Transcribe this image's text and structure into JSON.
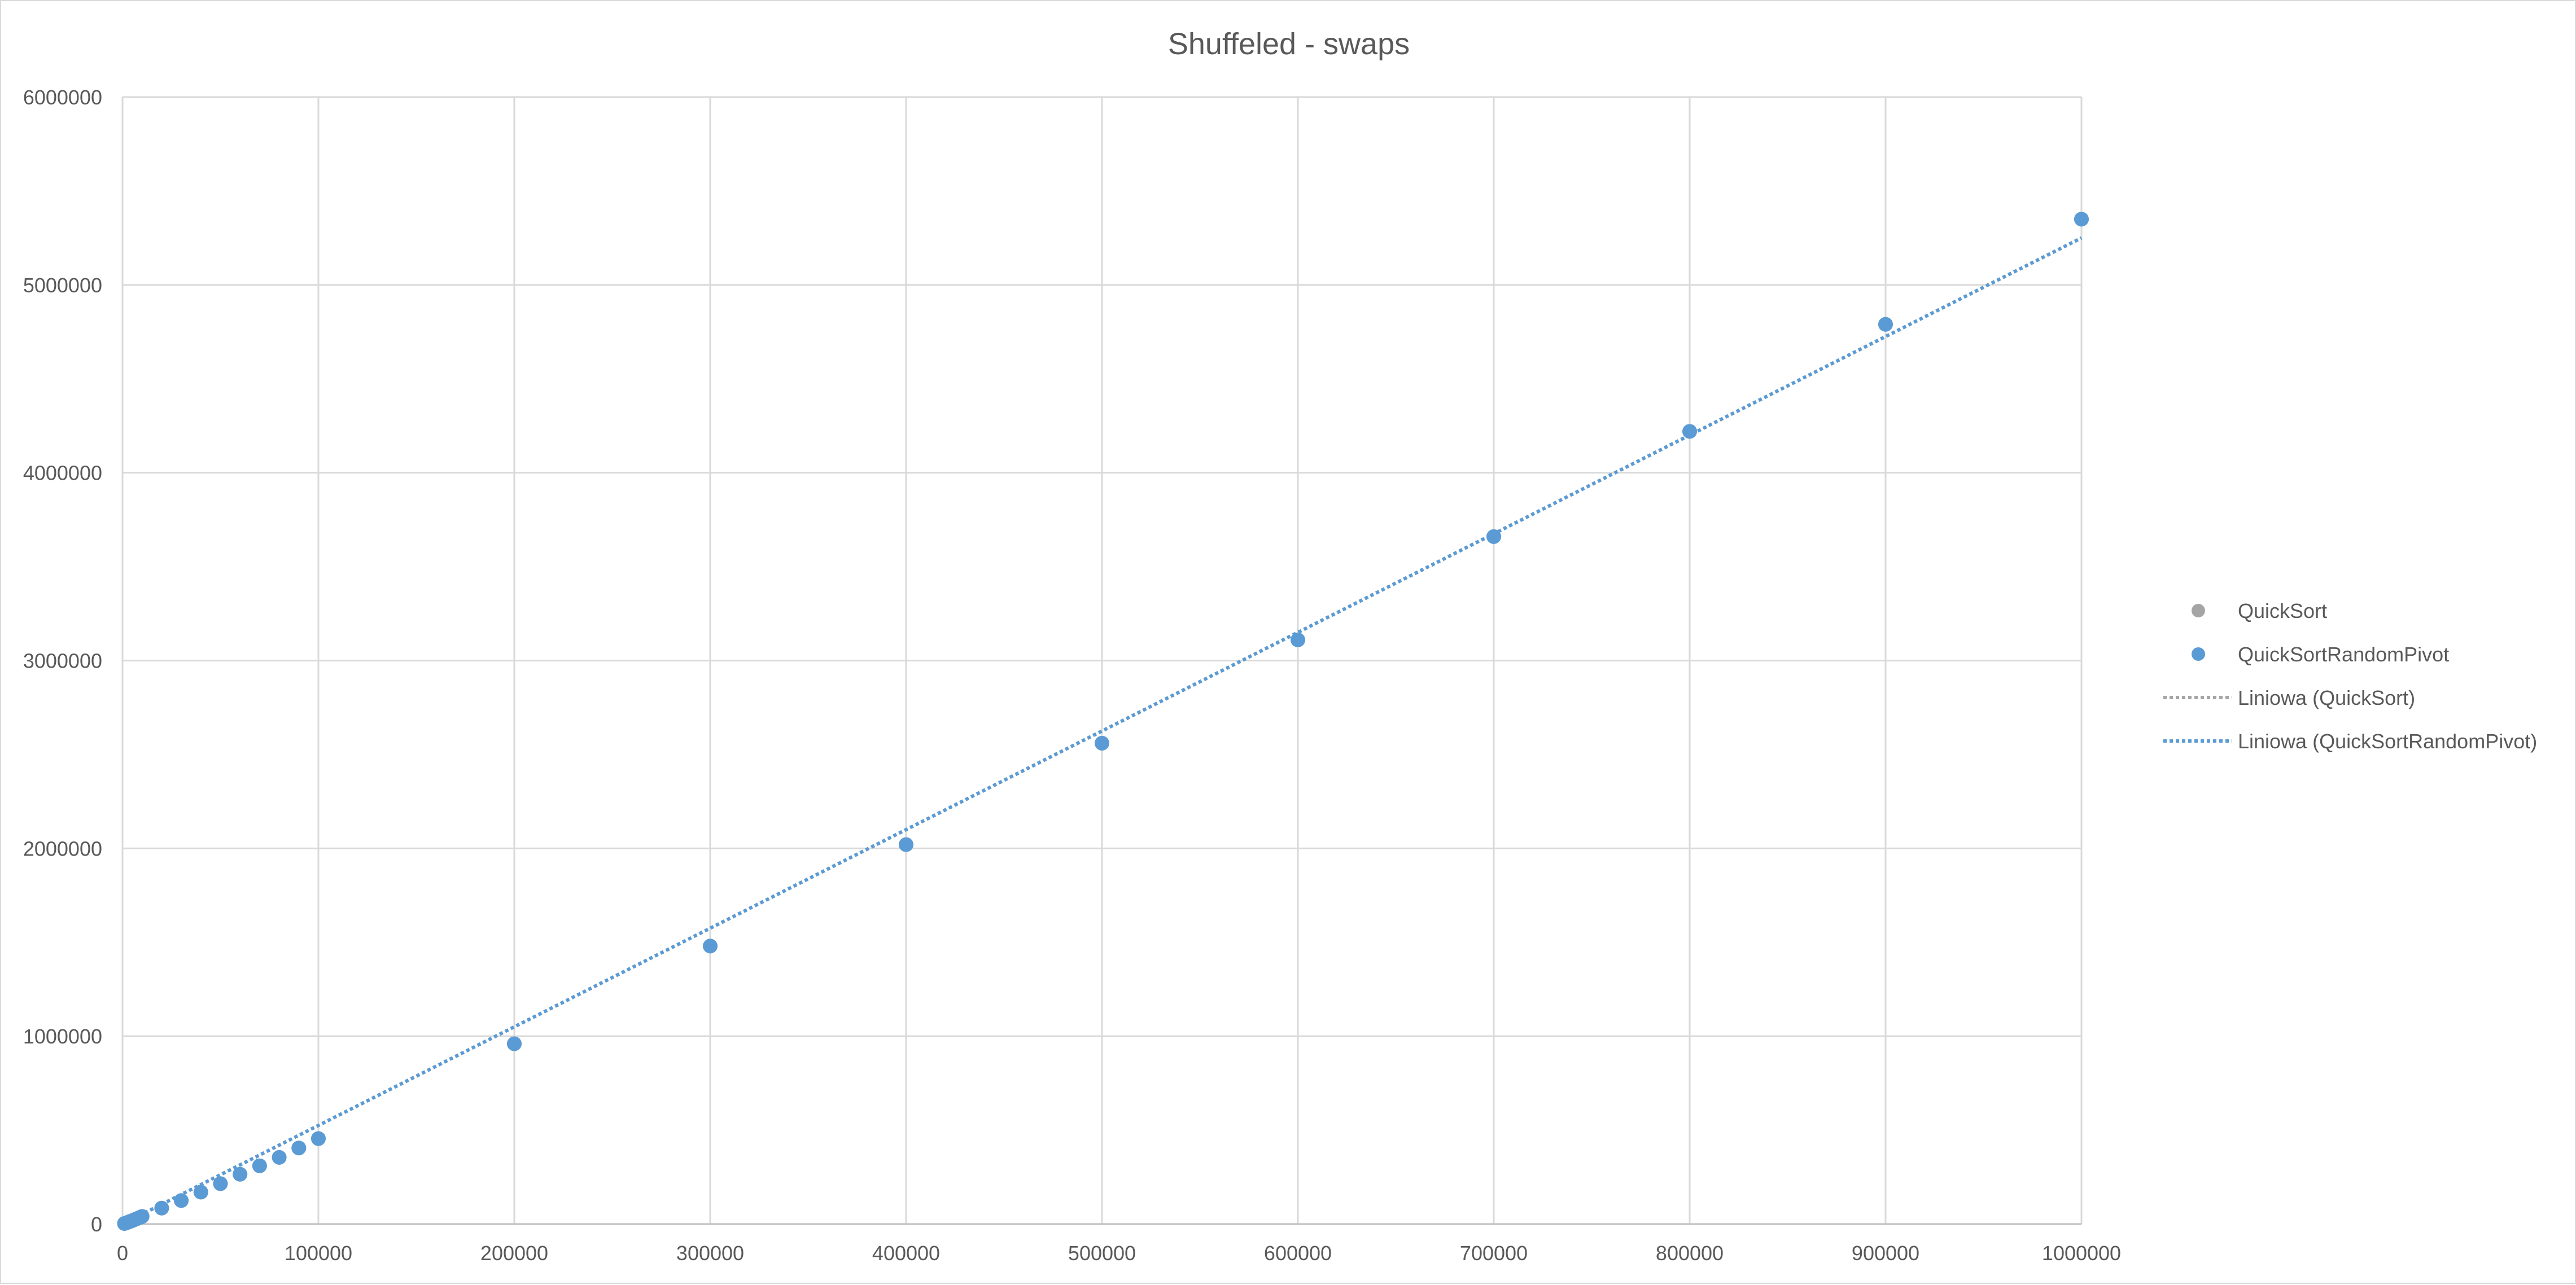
{
  "chart_data": {
    "type": "scatter",
    "title": "Shuffeled - swaps",
    "xlabel": "",
    "ylabel": "",
    "xlim": [
      0,
      1000000
    ],
    "ylim": [
      0,
      6000000
    ],
    "x_ticks": [
      "0",
      "100000",
      "200000",
      "300000",
      "400000",
      "500000",
      "600000",
      "700000",
      "800000",
      "900000",
      "1000000"
    ],
    "y_ticks": [
      "0",
      "1000000",
      "2000000",
      "3000000",
      "4000000",
      "5000000",
      "6000000"
    ],
    "grid": true,
    "legend_position": "right",
    "series": [
      {
        "name": "QuickSort",
        "color": "#a5a5a5",
        "x": [
          1000,
          2000,
          3000,
          4000,
          5000,
          6000,
          7000,
          8000,
          9000,
          10000,
          20000,
          30000,
          40000,
          50000,
          60000,
          70000,
          80000,
          90000,
          100000,
          200000,
          300000,
          400000,
          500000,
          600000,
          700000,
          800000,
          900000,
          1000000
        ],
        "y": [
          3000,
          6500,
          10500,
          14500,
          18500,
          23000,
          27000,
          31500,
          36000,
          40500,
          85000,
          125000,
          170000,
          215000,
          265000,
          310000,
          355000,
          405000,
          455000,
          960000,
          1480000,
          2020000,
          2560000,
          3110000,
          3660000,
          4220000,
          4790000,
          5350000
        ]
      },
      {
        "name": "QuickSortRandomPivot",
        "color": "#5b9bd5",
        "x": [
          1000,
          2000,
          3000,
          4000,
          5000,
          6000,
          7000,
          8000,
          9000,
          10000,
          20000,
          30000,
          40000,
          50000,
          60000,
          70000,
          80000,
          90000,
          100000,
          200000,
          300000,
          400000,
          500000,
          600000,
          700000,
          800000,
          900000,
          1000000
        ],
        "y": [
          3000,
          6500,
          10500,
          14500,
          18500,
          23000,
          27000,
          31500,
          36000,
          40500,
          85000,
          125000,
          170000,
          215000,
          265000,
          310000,
          355000,
          405000,
          455000,
          960000,
          1480000,
          2020000,
          2560000,
          3110000,
          3660000,
          4220000,
          4790000,
          5350000
        ]
      }
    ],
    "trendlines": [
      {
        "name": "Liniowa (QuickSort)",
        "color": "#a5a5a5",
        "x": [
          0,
          1000000
        ],
        "y": [
          0,
          5250000
        ]
      },
      {
        "name": "Liniowa (QuickSortRandomPivot)",
        "color": "#5b9bd5",
        "x": [
          0,
          1000000
        ],
        "y": [
          0,
          5250000
        ]
      }
    ]
  }
}
